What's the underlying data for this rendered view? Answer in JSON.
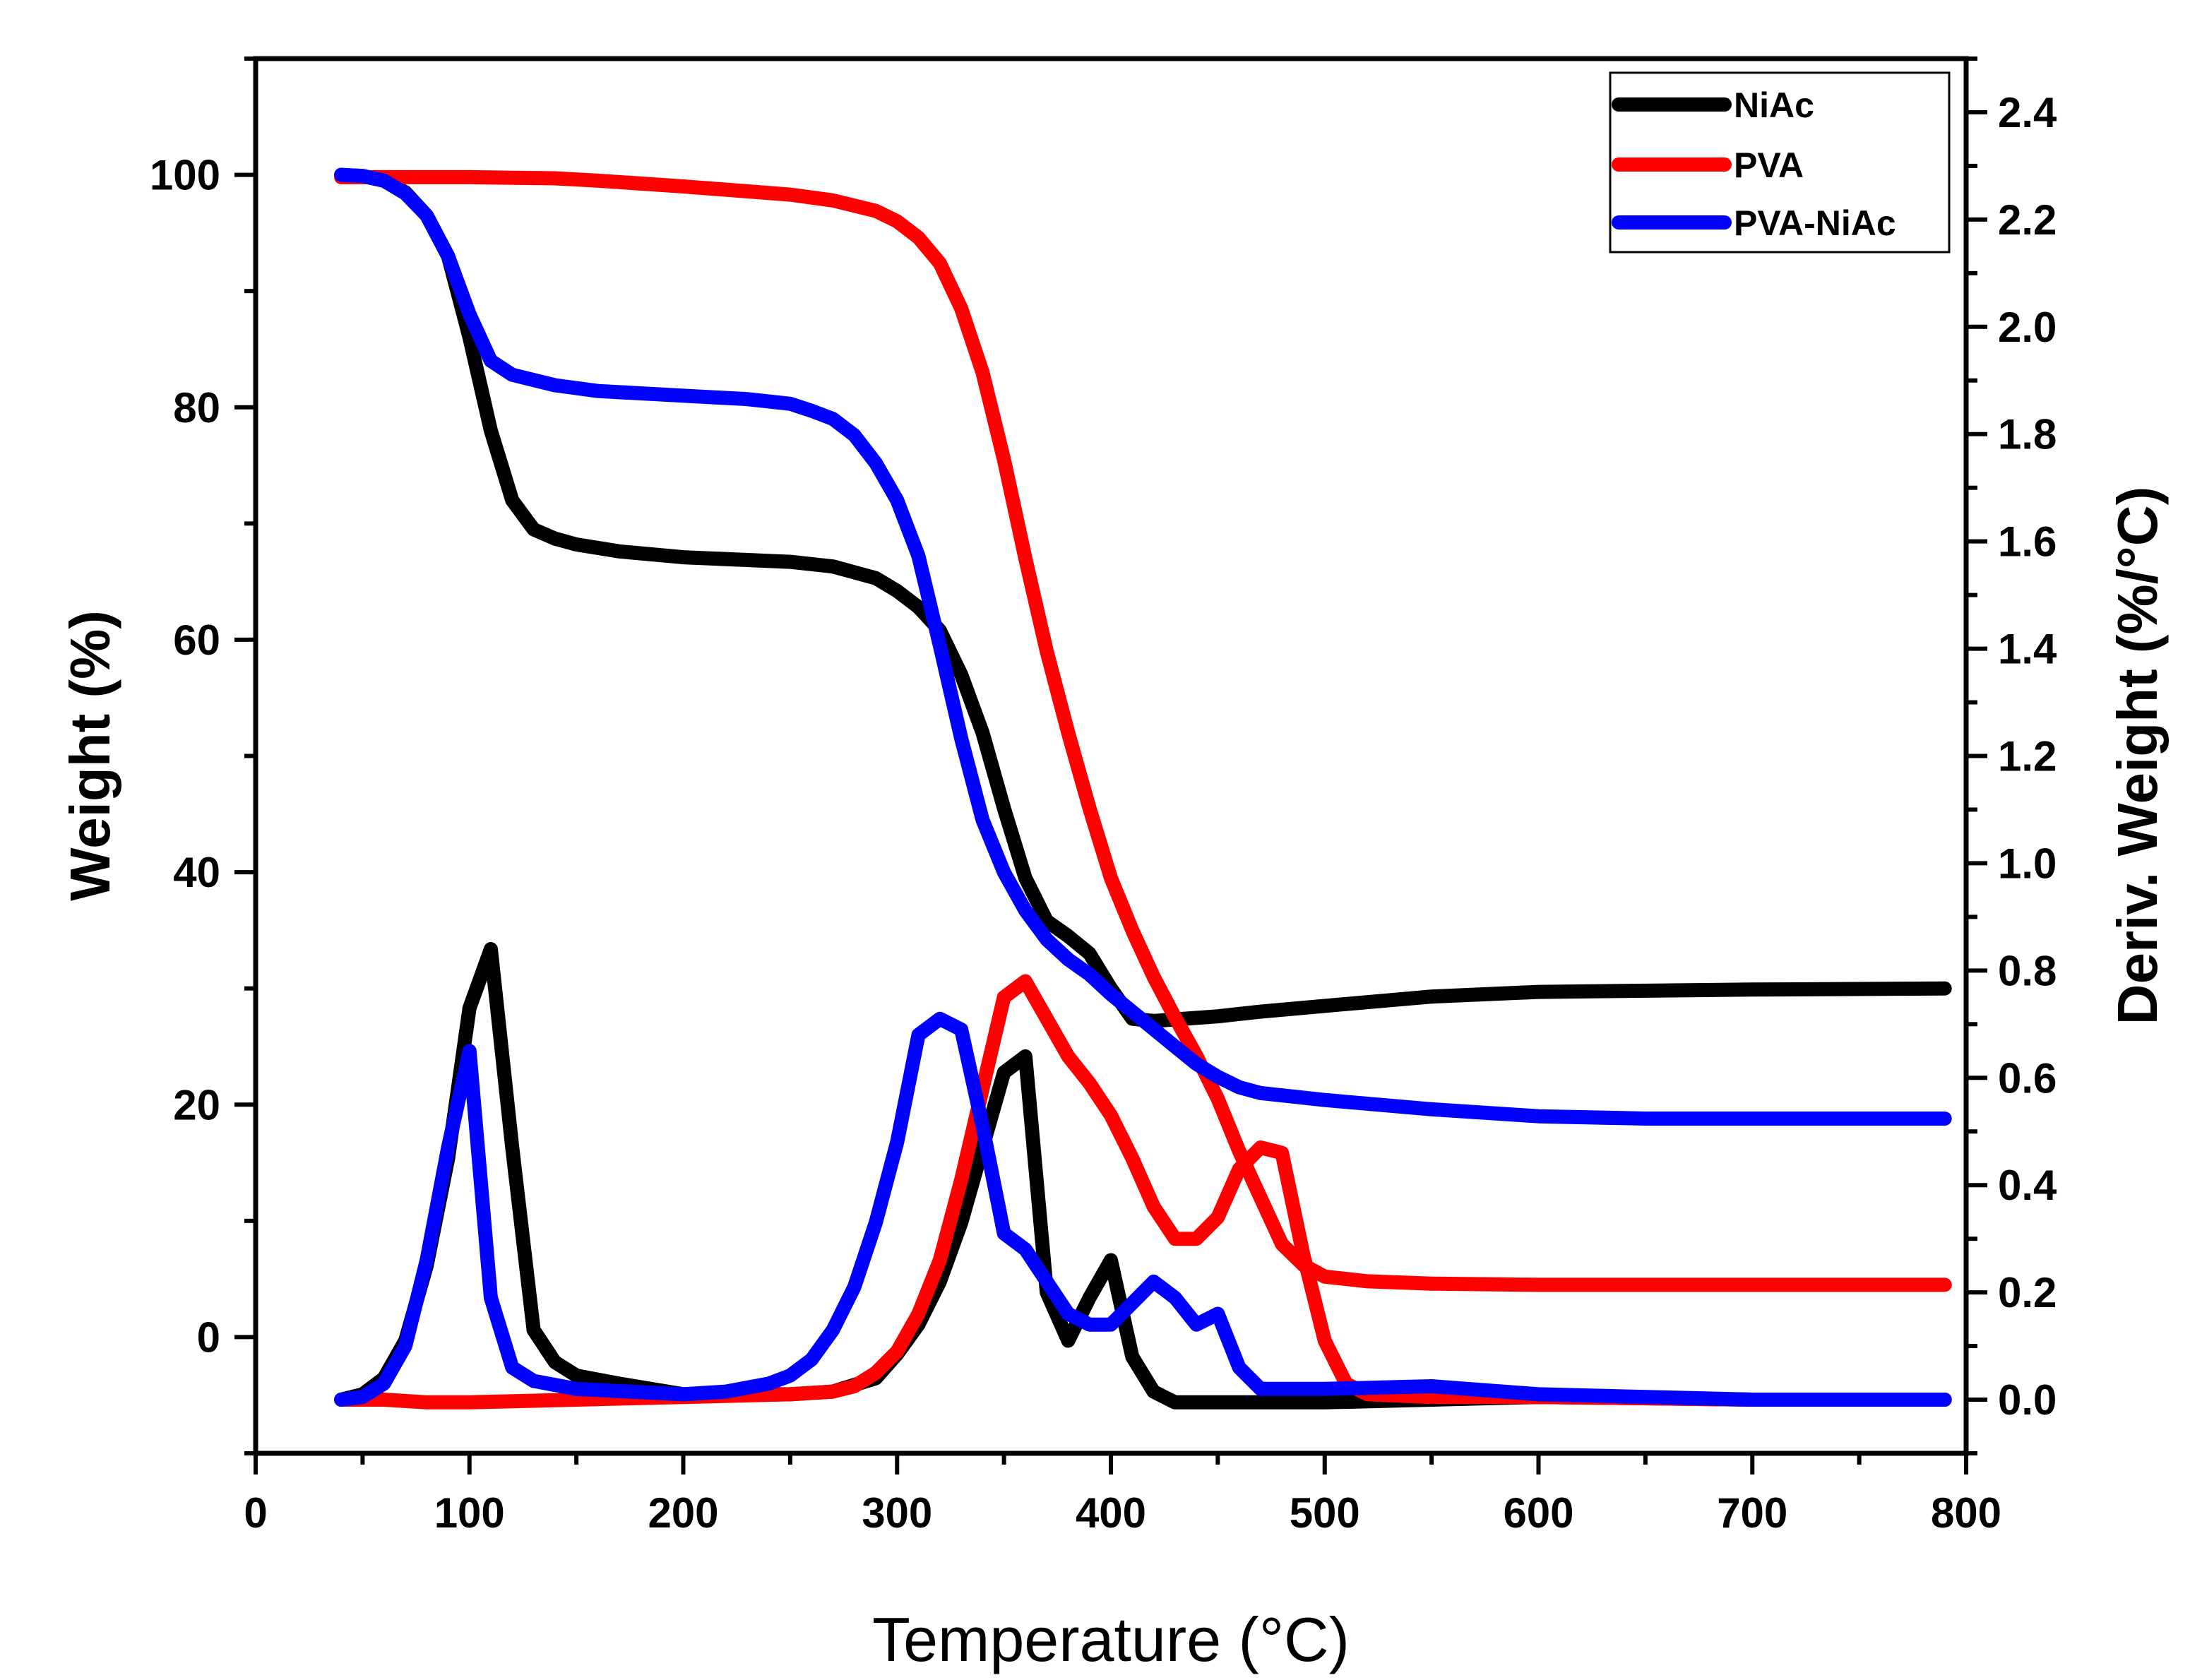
{
  "chart_data": {
    "type": "line",
    "title": "",
    "xlabel": "Temperature (°C)",
    "ylabel": "Weight (%)",
    "y2label": "Deriv. Weight (%/°C)",
    "xlim": [
      0,
      800
    ],
    "ylim": [
      -10,
      110
    ],
    "y2lim": [
      -0.1,
      2.5
    ],
    "xticks": [
      "0",
      "100",
      "200",
      "300",
      "400",
      "500",
      "600",
      "700",
      "800"
    ],
    "yticks": [
      "0",
      "20",
      "40",
      "60",
      "80",
      "100"
    ],
    "y2ticks": [
      "0.0",
      "0.2",
      "0.4",
      "0.6",
      "0.8",
      "1.0",
      "1.2",
      "1.4",
      "1.6",
      "1.8",
      "2.0",
      "2.2",
      "2.4"
    ],
    "grid": false,
    "legend_position": "top-right",
    "legend": [
      "NiAc",
      "PVA",
      "PVA-NiAc"
    ],
    "series": [
      {
        "name": "NiAc",
        "axis": "left",
        "kind": "weight",
        "color": "#000000",
        "points": [
          [
            40,
            100
          ],
          [
            50,
            99.9
          ],
          [
            60,
            99.5
          ],
          [
            70,
            98.5
          ],
          [
            80,
            96.5
          ],
          [
            90,
            93
          ],
          [
            100,
            86
          ],
          [
            110,
            78
          ],
          [
            120,
            72
          ],
          [
            130,
            69.5
          ],
          [
            140,
            68.7
          ],
          [
            150,
            68.2
          ],
          [
            170,
            67.6
          ],
          [
            200,
            67.1
          ],
          [
            250,
            66.7
          ],
          [
            270,
            66.3
          ],
          [
            290,
            65.3
          ],
          [
            300,
            64.2
          ],
          [
            310,
            62.8
          ],
          [
            320,
            60.8
          ],
          [
            330,
            57
          ],
          [
            340,
            52
          ],
          [
            350,
            45.5
          ],
          [
            360,
            39.5
          ],
          [
            370,
            35.8
          ],
          [
            380,
            34.5
          ],
          [
            390,
            33
          ],
          [
            400,
            30
          ],
          [
            410,
            27.4
          ],
          [
            420,
            27.2
          ],
          [
            450,
            27.6
          ],
          [
            470,
            28
          ],
          [
            500,
            28.5
          ],
          [
            550,
            29.3
          ],
          [
            600,
            29.7
          ],
          [
            700,
            29.9
          ],
          [
            790,
            30
          ]
        ]
      },
      {
        "name": "PVA",
        "axis": "left",
        "kind": "weight",
        "color": "#ff0000",
        "points": [
          [
            40,
            99.8
          ],
          [
            100,
            99.8
          ],
          [
            140,
            99.7
          ],
          [
            160,
            99.5
          ],
          [
            200,
            99
          ],
          [
            250,
            98.3
          ],
          [
            270,
            97.8
          ],
          [
            290,
            96.9
          ],
          [
            300,
            96
          ],
          [
            310,
            94.6
          ],
          [
            320,
            92.4
          ],
          [
            330,
            88.5
          ],
          [
            340,
            83
          ],
          [
            350,
            75.5
          ],
          [
            360,
            67
          ],
          [
            370,
            59
          ],
          [
            380,
            52
          ],
          [
            390,
            45.5
          ],
          [
            400,
            39.5
          ],
          [
            410,
            35
          ],
          [
            420,
            31
          ],
          [
            430,
            27.5
          ],
          [
            440,
            24.2
          ],
          [
            450,
            20.5
          ],
          [
            460,
            16
          ],
          [
            470,
            12
          ],
          [
            480,
            8
          ],
          [
            490,
            6.2
          ],
          [
            500,
            5.2
          ],
          [
            520,
            4.8
          ],
          [
            550,
            4.6
          ],
          [
            600,
            4.5
          ],
          [
            700,
            4.5
          ],
          [
            790,
            4.5
          ]
        ]
      },
      {
        "name": "PVA-NiAc",
        "axis": "left",
        "kind": "weight",
        "color": "#0000ff",
        "points": [
          [
            40,
            100
          ],
          [
            50,
            99.9
          ],
          [
            60,
            99.5
          ],
          [
            70,
            98.4
          ],
          [
            80,
            96.5
          ],
          [
            90,
            93
          ],
          [
            100,
            88
          ],
          [
            110,
            84
          ],
          [
            120,
            82.8
          ],
          [
            140,
            81.9
          ],
          [
            160,
            81.4
          ],
          [
            200,
            81
          ],
          [
            230,
            80.7
          ],
          [
            250,
            80.3
          ],
          [
            260,
            79.7
          ],
          [
            270,
            79
          ],
          [
            280,
            77.6
          ],
          [
            290,
            75.2
          ],
          [
            300,
            72
          ],
          [
            310,
            67.2
          ],
          [
            320,
            59.5
          ],
          [
            330,
            51.5
          ],
          [
            340,
            44.5
          ],
          [
            350,
            40
          ],
          [
            360,
            36.7
          ],
          [
            370,
            34.2
          ],
          [
            380,
            32.5
          ],
          [
            390,
            31.2
          ],
          [
            400,
            29.5
          ],
          [
            410,
            28
          ],
          [
            420,
            26.5
          ],
          [
            430,
            25
          ],
          [
            440,
            23.5
          ],
          [
            450,
            22.4
          ],
          [
            460,
            21.5
          ],
          [
            470,
            21
          ],
          [
            500,
            20.4
          ],
          [
            550,
            19.6
          ],
          [
            600,
            19
          ],
          [
            650,
            18.8
          ],
          [
            700,
            18.8
          ],
          [
            790,
            18.8
          ]
        ]
      },
      {
        "name": "NiAc",
        "axis": "right",
        "kind": "derivative",
        "color": "#000000",
        "points": [
          [
            40,
            0
          ],
          [
            50,
            0.01
          ],
          [
            60,
            0.04
          ],
          [
            70,
            0.11
          ],
          [
            80,
            0.25
          ],
          [
            90,
            0.45
          ],
          [
            100,
            0.73
          ],
          [
            110,
            0.84
          ],
          [
            120,
            0.47
          ],
          [
            130,
            0.13
          ],
          [
            140,
            0.07
          ],
          [
            150,
            0.045
          ],
          [
            170,
            0.03
          ],
          [
            200,
            0.01
          ],
          [
            250,
            0.01
          ],
          [
            270,
            0.015
          ],
          [
            290,
            0.04
          ],
          [
            300,
            0.085
          ],
          [
            310,
            0.14
          ],
          [
            320,
            0.22
          ],
          [
            330,
            0.33
          ],
          [
            340,
            0.47
          ],
          [
            350,
            0.61
          ],
          [
            360,
            0.64
          ],
          [
            370,
            0.2
          ],
          [
            380,
            0.11
          ],
          [
            390,
            0.19
          ],
          [
            400,
            0.26
          ],
          [
            410,
            0.08
          ],
          [
            420,
            0.015
          ],
          [
            430,
            -0.005
          ],
          [
            450,
            -0.005
          ],
          [
            500,
            -0.005
          ],
          [
            600,
            0.005
          ],
          [
            700,
            0.0
          ],
          [
            790,
            0.0
          ]
        ]
      },
      {
        "name": "PVA",
        "axis": "right",
        "kind": "derivative",
        "color": "#ff0000",
        "points": [
          [
            40,
            0
          ],
          [
            60,
            0
          ],
          [
            80,
            -0.005
          ],
          [
            100,
            -0.005
          ],
          [
            150,
            0
          ],
          [
            200,
            0.005
          ],
          [
            250,
            0.01
          ],
          [
            270,
            0.015
          ],
          [
            280,
            0.025
          ],
          [
            290,
            0.05
          ],
          [
            300,
            0.09
          ],
          [
            310,
            0.16
          ],
          [
            320,
            0.26
          ],
          [
            330,
            0.41
          ],
          [
            340,
            0.58
          ],
          [
            350,
            0.75
          ],
          [
            360,
            0.78
          ],
          [
            370,
            0.71
          ],
          [
            380,
            0.64
          ],
          [
            390,
            0.59
          ],
          [
            400,
            0.53
          ],
          [
            410,
            0.45
          ],
          [
            420,
            0.36
          ],
          [
            430,
            0.3
          ],
          [
            440,
            0.3
          ],
          [
            450,
            0.34
          ],
          [
            460,
            0.43
          ],
          [
            470,
            0.47
          ],
          [
            480,
            0.46
          ],
          [
            490,
            0.27
          ],
          [
            500,
            0.11
          ],
          [
            510,
            0.03
          ],
          [
            520,
            0.01
          ],
          [
            550,
            0.005
          ],
          [
            600,
            0.005
          ],
          [
            700,
            0.0
          ],
          [
            790,
            0.0
          ]
        ]
      },
      {
        "name": "PVA-NiAc",
        "axis": "right",
        "kind": "derivative",
        "color": "#0000ff",
        "points": [
          [
            40,
            0
          ],
          [
            50,
            0.005
          ],
          [
            60,
            0.03
          ],
          [
            70,
            0.1
          ],
          [
            80,
            0.26
          ],
          [
            90,
            0.47
          ],
          [
            100,
            0.65
          ],
          [
            110,
            0.19
          ],
          [
            120,
            0.06
          ],
          [
            130,
            0.035
          ],
          [
            150,
            0.02
          ],
          [
            200,
            0.01
          ],
          [
            220,
            0.015
          ],
          [
            240,
            0.03
          ],
          [
            250,
            0.045
          ],
          [
            260,
            0.075
          ],
          [
            270,
            0.13
          ],
          [
            280,
            0.21
          ],
          [
            290,
            0.33
          ],
          [
            300,
            0.48
          ],
          [
            310,
            0.68
          ],
          [
            320,
            0.71
          ],
          [
            330,
            0.69
          ],
          [
            340,
            0.51
          ],
          [
            350,
            0.31
          ],
          [
            360,
            0.28
          ],
          [
            370,
            0.22
          ],
          [
            380,
            0.16
          ],
          [
            390,
            0.14
          ],
          [
            400,
            0.14
          ],
          [
            410,
            0.18
          ],
          [
            420,
            0.22
          ],
          [
            430,
            0.19
          ],
          [
            440,
            0.14
          ],
          [
            450,
            0.16
          ],
          [
            460,
            0.06
          ],
          [
            470,
            0.02
          ],
          [
            500,
            0.02
          ],
          [
            550,
            0.025
          ],
          [
            600,
            0.01
          ],
          [
            700,
            0.0
          ],
          [
            790,
            0.0
          ]
        ]
      }
    ]
  }
}
